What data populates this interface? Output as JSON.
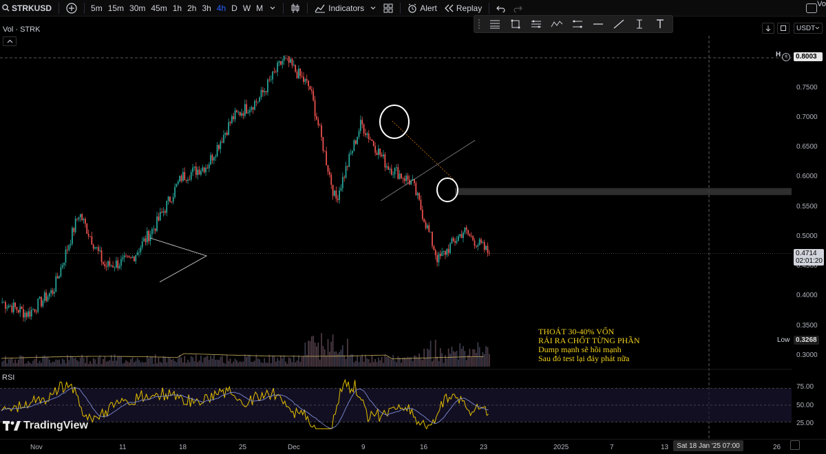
{
  "toolbar": {
    "symbol": "STRKUSD",
    "intervals": [
      "5m",
      "15m",
      "30m",
      "45m",
      "1h",
      "2h",
      "3h",
      "4h",
      "D",
      "W",
      "M"
    ],
    "active_interval": "4h",
    "indicators_label": "Indicators",
    "alert_label": "Alert",
    "replay_label": "Replay",
    "right_text": "Vo"
  },
  "legend": {
    "vol_label": "Vol · STRK"
  },
  "price_axis": {
    "currency": "USDT",
    "ticks": [
      "0.7500",
      "0.7000",
      "0.6500",
      "0.6000",
      "0.5500",
      "0.5000",
      "0.4500",
      "0.4000",
      "0.3500",
      "0.3000"
    ],
    "high_marker": "H",
    "high_value": "0.8003",
    "current_price": "0.4714",
    "countdown": "02:01:20",
    "low_label": "Low",
    "low_value": "0.3268"
  },
  "annotation": {
    "lines": [
      "THOÁT 30-40% VỐN",
      "RẢI RA CHỐT TỪNG PHẦN",
      "Dump mạnh sẽ hồi mạnh",
      "Sau đó test lại đáy phát nữa"
    ]
  },
  "rsi": {
    "label": "RSI",
    "ticks": [
      "75.00",
      "50.00",
      "25.00"
    ]
  },
  "logo": {
    "text": "TradingView"
  },
  "time_axis": {
    "labels": [
      "Nov",
      "11",
      "18",
      "25",
      "Dec",
      "9",
      "16",
      "23",
      "2025",
      "7",
      "13",
      "26"
    ],
    "crosshair_label": "Sat 18 Jan '25  07:00"
  },
  "colors": {
    "up": "#26a69a",
    "down": "#ef5350",
    "rsi_line": "#e6c200",
    "rsi_ma": "#7b8cd6",
    "annotation": "#f2d21c",
    "zone": "#3a3a3a"
  },
  "chart_data": {
    "type": "candlestick",
    "price_ylim": [
      0.3,
      0.8003
    ],
    "high": 0.8003,
    "low": 0.3268,
    "last": 0.4714,
    "approx_path": [
      {
        "x": "Nov",
        "close": 0.39
      },
      {
        "x": "Nov 4",
        "close": 0.37
      },
      {
        "x": "Nov 8",
        "close": 0.41
      },
      {
        "x": "11",
        "close": 0.54
      },
      {
        "x": "14",
        "close": 0.45
      },
      {
        "x": "18",
        "close": 0.46
      },
      {
        "x": "21",
        "close": 0.52
      },
      {
        "x": "25",
        "close": 0.6
      },
      {
        "x": "28",
        "close": 0.62
      },
      {
        "x": "Dec",
        "close": 0.7
      },
      {
        "x": "Dec 4",
        "close": 0.73
      },
      {
        "x": "Dec 7",
        "close": 0.8
      },
      {
        "x": "9",
        "close": 0.75
      },
      {
        "x": "Dec 10",
        "close": 0.56
      },
      {
        "x": "Dec 12",
        "close": 0.69
      },
      {
        "x": "16",
        "close": 0.62
      },
      {
        "x": "Dec 18",
        "close": 0.59
      },
      {
        "x": "Dec 20",
        "close": 0.46
      },
      {
        "x": "Dec 22",
        "close": 0.51
      },
      {
        "x": "23",
        "close": 0.4714
      }
    ],
    "resistance_zone": [
      0.5697,
      0.5814
    ],
    "rsi_ylim": [
      0,
      100
    ],
    "rsi_levels": [
      75,
      50,
      25
    ]
  }
}
